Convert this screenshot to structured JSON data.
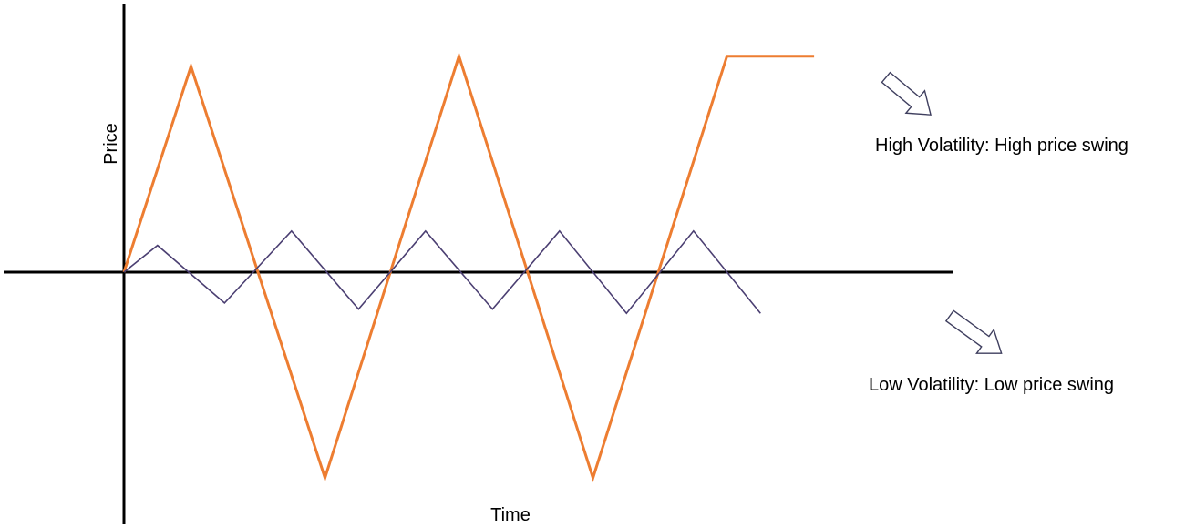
{
  "labels": {
    "y_axis": "Price",
    "x_axis": "Time",
    "high_volatility": "High Volatility: High price swing",
    "low_volatility": "Low Volatility: Low price swing"
  },
  "colors": {
    "axis": "#000000",
    "high_series": "#ed7d31",
    "low_series": "#4b3f72",
    "arrow_outline": "#3f3f5f",
    "background": "#ffffff"
  },
  "chart_data": {
    "type": "line",
    "title": "",
    "xlabel": "Time",
    "ylabel": "Price",
    "series": [
      {
        "name": "High Volatility",
        "x": [
          0,
          1,
          3,
          5,
          7,
          9,
          10.3
        ],
        "y": [
          0,
          1,
          -1,
          1.05,
          -1,
          1.05,
          1.05
        ]
      },
      {
        "name": "Low Volatility",
        "x": [
          0,
          0.5,
          1.5,
          2.5,
          3.5,
          4.5,
          5.5,
          6.5,
          7.5,
          8.5,
          9.5
        ],
        "y": [
          0,
          0.13,
          -0.15,
          0.2,
          -0.18,
          0.2,
          -0.18,
          0.2,
          -0.2,
          0.2,
          -0.2
        ]
      }
    ],
    "xlim": [
      0,
      10.5
    ],
    "ylim": [
      -1.1,
      1.1
    ],
    "grid": false,
    "legend": "none"
  }
}
